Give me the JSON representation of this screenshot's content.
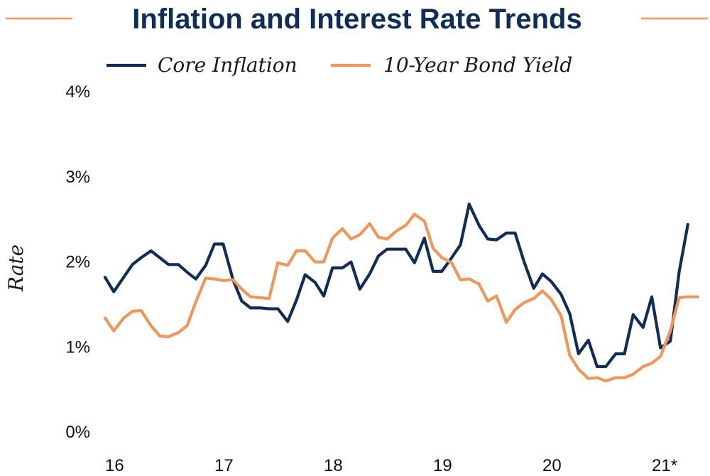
{
  "chart_data": {
    "type": "line",
    "title": "Inflation and Interest Rate Trends",
    "xlabel": "",
    "ylabel": "Rate",
    "ylim": [
      0,
      4
    ],
    "y_ticks": [
      "0%",
      "1%",
      "2%",
      "3%",
      "4%"
    ],
    "x_ticks": [
      {
        "label": "16",
        "x": 2016
      },
      {
        "label": "17",
        "x": 2017
      },
      {
        "label": "18",
        "x": 2018
      },
      {
        "label": "19",
        "x": 2019
      },
      {
        "label": "20",
        "x": 2020
      },
      {
        "label": "21*",
        "x": 2021
      }
    ],
    "legend_position": "top-center",
    "grid": false,
    "series": [
      {
        "name": "Core Inflation",
        "color": "#0f2d57",
        "points": [
          [
            2016.0,
            1.81
          ],
          [
            2016.08,
            1.64
          ],
          [
            2016.17,
            1.81
          ],
          [
            2016.25,
            1.96
          ],
          [
            2016.33,
            2.04
          ],
          [
            2016.42,
            2.12
          ],
          [
            2016.5,
            2.04
          ],
          [
            2016.58,
            1.96
          ],
          [
            2016.67,
            1.96
          ],
          [
            2016.75,
            1.87
          ],
          [
            2016.83,
            1.79
          ],
          [
            2016.92,
            1.95
          ],
          [
            2017.0,
            2.2
          ],
          [
            2017.08,
            2.2
          ],
          [
            2017.17,
            1.78
          ],
          [
            2017.25,
            1.53
          ],
          [
            2017.33,
            1.45
          ],
          [
            2017.42,
            1.45
          ],
          [
            2017.5,
            1.44
          ],
          [
            2017.58,
            1.44
          ],
          [
            2017.67,
            1.29
          ],
          [
            2017.75,
            1.54
          ],
          [
            2017.83,
            1.84
          ],
          [
            2017.92,
            1.75
          ],
          [
            2018.0,
            1.59
          ],
          [
            2018.08,
            1.92
          ],
          [
            2018.17,
            1.92
          ],
          [
            2018.25,
            1.99
          ],
          [
            2018.33,
            1.67
          ],
          [
            2018.42,
            1.85
          ],
          [
            2018.5,
            2.06
          ],
          [
            2018.58,
            2.14
          ],
          [
            2018.67,
            2.14
          ],
          [
            2018.75,
            2.14
          ],
          [
            2018.83,
            1.98
          ],
          [
            2018.92,
            2.27
          ],
          [
            2019.0,
            1.88
          ],
          [
            2019.08,
            1.88
          ],
          [
            2019.17,
            2.04
          ],
          [
            2019.25,
            2.19
          ],
          [
            2019.33,
            2.67
          ],
          [
            2019.42,
            2.42
          ],
          [
            2019.5,
            2.26
          ],
          [
            2019.58,
            2.25
          ],
          [
            2019.67,
            2.33
          ],
          [
            2019.75,
            2.33
          ],
          [
            2019.83,
            2.0
          ],
          [
            2019.92,
            1.68
          ],
          [
            2020.0,
            1.85
          ],
          [
            2020.08,
            1.76
          ],
          [
            2020.17,
            1.61
          ],
          [
            2020.25,
            1.38
          ],
          [
            2020.33,
            0.91
          ],
          [
            2020.42,
            1.07
          ],
          [
            2020.5,
            0.76
          ],
          [
            2020.58,
            0.76
          ],
          [
            2020.67,
            0.91
          ],
          [
            2020.75,
            0.91
          ],
          [
            2020.83,
            1.37
          ],
          [
            2020.92,
            1.22
          ],
          [
            2021.0,
            1.58
          ],
          [
            2021.08,
            0.98
          ],
          [
            2021.17,
            1.06
          ],
          [
            2021.25,
            1.87
          ],
          [
            2021.33,
            2.43
          ]
        ]
      },
      {
        "name": "10-Year Bond Yield",
        "color": "#f0965a",
        "points": [
          [
            2016.0,
            1.33
          ],
          [
            2016.08,
            1.18
          ],
          [
            2016.17,
            1.33
          ],
          [
            2016.25,
            1.41
          ],
          [
            2016.33,
            1.42
          ],
          [
            2016.42,
            1.24
          ],
          [
            2016.5,
            1.12
          ],
          [
            2016.58,
            1.11
          ],
          [
            2016.67,
            1.16
          ],
          [
            2016.75,
            1.24
          ],
          [
            2016.83,
            1.52
          ],
          [
            2016.92,
            1.8
          ],
          [
            2017.0,
            1.79
          ],
          [
            2017.08,
            1.77
          ],
          [
            2017.17,
            1.78
          ],
          [
            2017.25,
            1.67
          ],
          [
            2017.33,
            1.58
          ],
          [
            2017.42,
            1.57
          ],
          [
            2017.5,
            1.56
          ],
          [
            2017.58,
            1.98
          ],
          [
            2017.67,
            1.95
          ],
          [
            2017.75,
            2.12
          ],
          [
            2017.83,
            2.12
          ],
          [
            2017.92,
            1.99
          ],
          [
            2018.0,
            1.99
          ],
          [
            2018.08,
            2.27
          ],
          [
            2018.17,
            2.38
          ],
          [
            2018.25,
            2.26
          ],
          [
            2018.33,
            2.31
          ],
          [
            2018.42,
            2.44
          ],
          [
            2018.5,
            2.28
          ],
          [
            2018.58,
            2.26
          ],
          [
            2018.67,
            2.36
          ],
          [
            2018.75,
            2.42
          ],
          [
            2018.83,
            2.55
          ],
          [
            2018.92,
            2.47
          ],
          [
            2019.0,
            2.15
          ],
          [
            2019.08,
            2.04
          ],
          [
            2019.17,
            1.98
          ],
          [
            2019.25,
            1.78
          ],
          [
            2019.33,
            1.79
          ],
          [
            2019.42,
            1.73
          ],
          [
            2019.5,
            1.53
          ],
          [
            2019.58,
            1.59
          ],
          [
            2019.67,
            1.28
          ],
          [
            2019.75,
            1.43
          ],
          [
            2019.83,
            1.51
          ],
          [
            2019.92,
            1.56
          ],
          [
            2020.0,
            1.65
          ],
          [
            2020.08,
            1.55
          ],
          [
            2020.17,
            1.36
          ],
          [
            2020.25,
            0.89
          ],
          [
            2020.33,
            0.73
          ],
          [
            2020.42,
            0.62
          ],
          [
            2020.5,
            0.63
          ],
          [
            2020.58,
            0.59
          ],
          [
            2020.67,
            0.63
          ],
          [
            2020.75,
            0.63
          ],
          [
            2020.83,
            0.67
          ],
          [
            2020.92,
            0.76
          ],
          [
            2021.0,
            0.8
          ],
          [
            2021.08,
            0.88
          ],
          [
            2021.17,
            1.18
          ],
          [
            2021.25,
            1.57
          ],
          [
            2021.33,
            1.58
          ],
          [
            2021.42,
            1.58
          ]
        ]
      }
    ]
  }
}
